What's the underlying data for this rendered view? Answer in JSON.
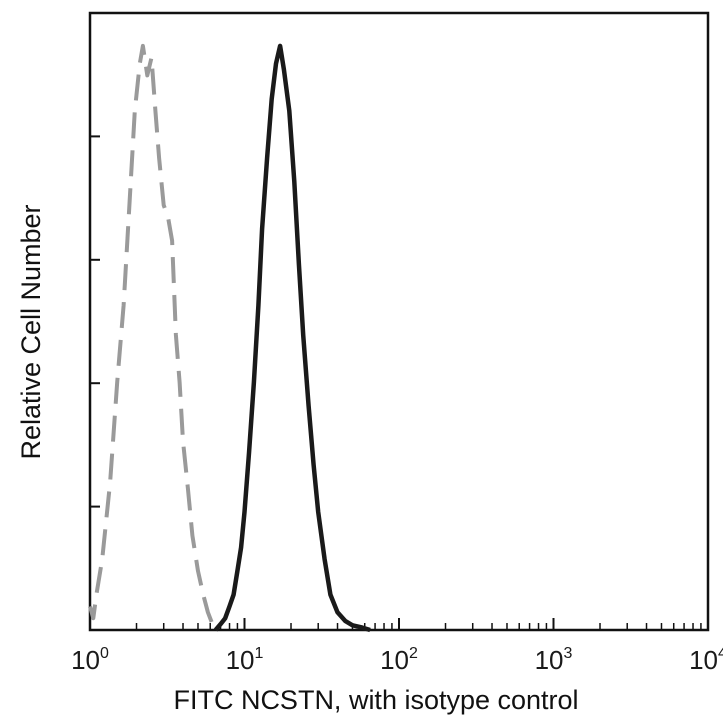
{
  "chart_data": {
    "type": "line",
    "title": "",
    "xlabel": "FITC NCSTN, with isotype control",
    "ylabel": "Relative Cell Number",
    "x_scale": "log",
    "xlim": [
      1,
      10000
    ],
    "ylim": [
      0,
      1
    ],
    "grid": false,
    "legend": "none",
    "x_ticks": [
      {
        "value": 1,
        "base": "10",
        "exp": "0"
      },
      {
        "value": 10,
        "base": "10",
        "exp": "1"
      },
      {
        "value": 100,
        "base": "10",
        "exp": "2"
      },
      {
        "value": 1000,
        "base": "10",
        "exp": "3"
      },
      {
        "value": 10000,
        "base": "10",
        "exp": "4"
      }
    ],
    "y_ticks": [
      0,
      0.2,
      0.4,
      0.6,
      0.8,
      1.0
    ],
    "series": [
      {
        "style": "dashed",
        "color": "#9a9a9a",
        "x": [
          1.0,
          1.05,
          1.1,
          1.2,
          1.35,
          1.5,
          1.65,
          1.8,
          1.95,
          2.1,
          2.2,
          2.35,
          2.5,
          2.65,
          2.8,
          3.0,
          3.2,
          3.4,
          3.6,
          3.8,
          4.0,
          4.3,
          4.6,
          5.0,
          5.4,
          5.8,
          6.2,
          6.7
        ],
        "y": [
          0.04,
          0.02,
          0.06,
          0.12,
          0.25,
          0.42,
          0.55,
          0.72,
          0.88,
          0.96,
          0.99,
          0.94,
          0.97,
          0.88,
          0.8,
          0.72,
          0.7,
          0.66,
          0.5,
          0.42,
          0.32,
          0.24,
          0.16,
          0.1,
          0.06,
          0.03,
          0.01,
          0.0
        ]
      },
      {
        "style": "solid",
        "color": "#1a1a1a",
        "x": [
          6.5,
          7.0,
          7.5,
          8.0,
          8.5,
          9.0,
          9.5,
          10.0,
          10.7,
          11.5,
          12.3,
          13.0,
          14.0,
          15.0,
          16.0,
          17.0,
          18.0,
          19.5,
          21.0,
          22.5,
          24.0,
          26.0,
          28.0,
          30.0,
          33.0,
          36.0,
          40.0,
          45.0,
          50.0,
          58.0,
          65.0
        ],
        "y": [
          0.0,
          0.01,
          0.02,
          0.04,
          0.06,
          0.1,
          0.14,
          0.2,
          0.3,
          0.42,
          0.55,
          0.68,
          0.8,
          0.9,
          0.96,
          0.99,
          0.95,
          0.88,
          0.76,
          0.62,
          0.5,
          0.38,
          0.28,
          0.2,
          0.12,
          0.06,
          0.03,
          0.015,
          0.008,
          0.004,
          0.0
        ]
      }
    ]
  }
}
